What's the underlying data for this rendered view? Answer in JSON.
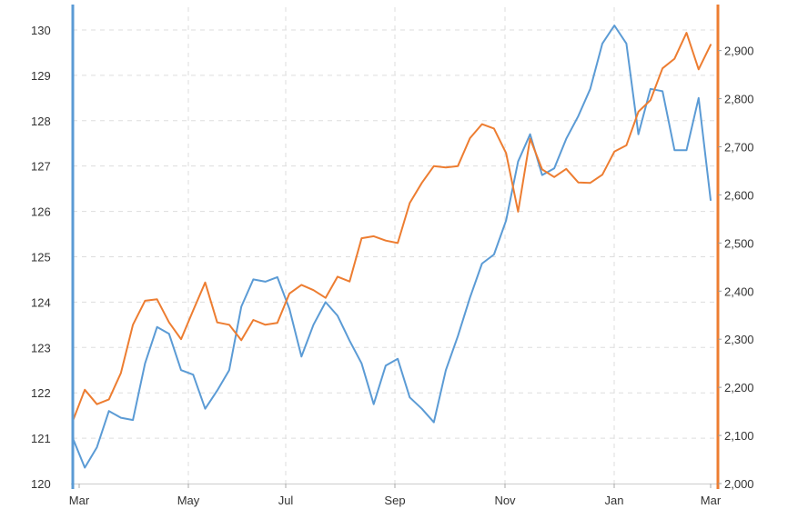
{
  "chart_data": {
    "type": "line",
    "title": "",
    "xlabel": "",
    "ylabel": "",
    "x_ticks": [
      "Mar",
      "May",
      "Jul",
      "Sep",
      "Nov",
      "Jan",
      "Mar"
    ],
    "left_axis": {
      "ylim": [
        120,
        130.5
      ],
      "ticks": [
        "120",
        "121",
        "122",
        "123",
        "124",
        "125",
        "126",
        "127",
        "128",
        "129",
        "130"
      ],
      "color": "#5b9bd5"
    },
    "right_axis": {
      "ylim": [
        2000,
        2990
      ],
      "ticks": [
        "2,000",
        "2,100",
        "2,200",
        "2,300",
        "2,400",
        "2,500",
        "2,600",
        "2,700",
        "2,800",
        "2,900"
      ],
      "color": "#ed7d31"
    },
    "grid": true,
    "series": [
      {
        "axis": "left",
        "color": "#5b9bd5",
        "values": [
          121.0,
          120.35,
          120.8,
          121.6,
          121.45,
          121.4,
          122.65,
          123.45,
          123.3,
          122.5,
          122.4,
          121.65,
          122.05,
          122.5,
          123.9,
          124.5,
          124.45,
          124.55,
          123.85,
          122.8,
          123.5,
          124.0,
          123.7,
          123.15,
          122.65,
          121.75,
          122.6,
          122.75,
          121.9,
          121.65,
          121.35,
          122.5,
          123.25,
          124.1,
          124.85,
          125.05,
          125.8,
          127.1,
          127.7,
          126.8,
          126.95,
          127.6,
          128.1,
          128.7,
          129.7,
          130.1,
          129.7,
          127.7,
          128.7,
          128.65,
          127.35,
          127.35,
          128.5,
          126.25
        ]
      },
      {
        "axis": "right",
        "color": "#ed7d31",
        "values": [
          2130,
          2195,
          2165,
          2175,
          2230,
          2330,
          2380,
          2383,
          2335,
          2300,
          2360,
          2418,
          2335,
          2330,
          2298,
          2340,
          2330,
          2334,
          2395,
          2413,
          2402,
          2386,
          2430,
          2420,
          2510,
          2514,
          2505,
          2500,
          2583,
          2625,
          2660,
          2657,
          2660,
          2718,
          2747,
          2738,
          2687,
          2565,
          2717,
          2653,
          2637,
          2654,
          2626,
          2625,
          2642,
          2690,
          2703,
          2773,
          2797,
          2863,
          2883,
          2937,
          2861,
          2912
        ]
      }
    ]
  }
}
